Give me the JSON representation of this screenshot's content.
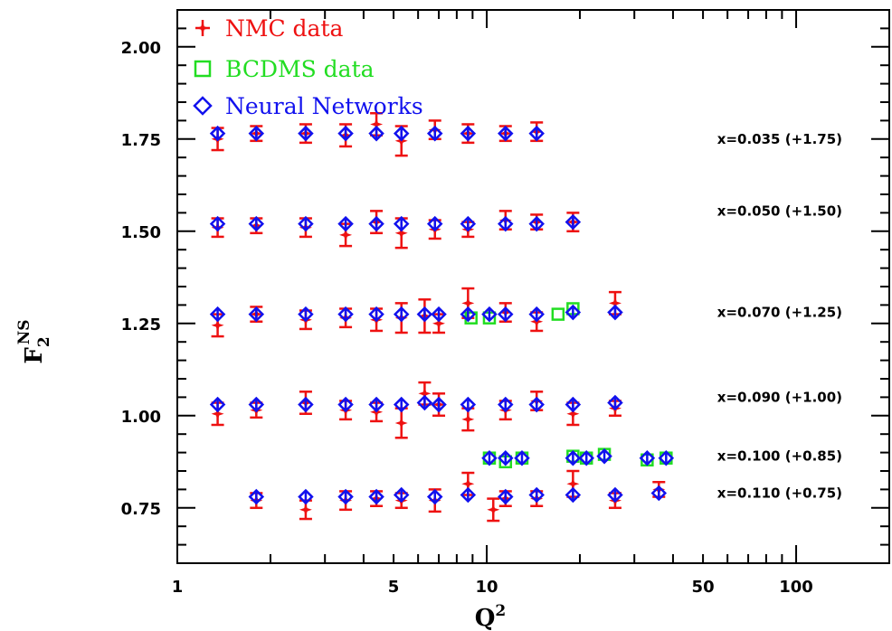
{
  "chart_data": {
    "type": "scatter",
    "x_axis": {
      "label": "Q",
      "label_sup": "2",
      "scale": "log",
      "range": [
        1,
        200
      ],
      "tick_values": [
        1,
        5,
        10,
        50,
        100
      ],
      "tick_labels": [
        "1",
        "5",
        "10",
        "50",
        "100"
      ]
    },
    "y_axis": {
      "label": "F",
      "label_sup": "NS",
      "label_sub": "2",
      "range": [
        0.6,
        2.1
      ],
      "tick_values": [
        0.75,
        1.0,
        1.25,
        1.5,
        1.75,
        2.0
      ],
      "tick_labels": [
        "0.75",
        "1.00",
        "1.25",
        "1.50",
        "1.75",
        "2.00"
      ]
    },
    "legend": {
      "placement": "top-left",
      "entries": [
        {
          "label": "NMC data",
          "color": "#ee1111",
          "marker": "star"
        },
        {
          "label": "BCDMS data",
          "color": "#22dd22",
          "marker": "square"
        },
        {
          "label": "Neural Networks",
          "color": "#1111ee",
          "marker": "diamond"
        }
      ]
    },
    "annotations": [
      {
        "text": "x=0.035 (+1.75)",
        "y": 1.75
      },
      {
        "text": "x=0.050 (+1.50)",
        "y": 1.555
      },
      {
        "text": "x=0.070 (+1.25)",
        "y": 1.28
      },
      {
        "text": "x=0.090 (+1.00)",
        "y": 1.05
      },
      {
        "text": "x=0.100 (+0.85)",
        "y": 0.89
      },
      {
        "text": "x=0.110 (+0.75)",
        "y": 0.79
      }
    ],
    "series": [
      {
        "name": "NMC data",
        "color": "#ee1111",
        "points": [
          [
            1.35,
            1.75,
            0.03
          ],
          [
            1.8,
            1.765,
            0.02
          ],
          [
            2.6,
            1.765,
            0.025
          ],
          [
            3.5,
            1.76,
            0.03
          ],
          [
            4.4,
            1.79,
            0.03
          ],
          [
            5.3,
            1.745,
            0.04
          ],
          [
            6.8,
            1.775,
            0.025
          ],
          [
            8.7,
            1.765,
            0.025
          ],
          [
            11.5,
            1.765,
            0.02
          ],
          [
            14.5,
            1.77,
            0.025
          ],
          [
            1.35,
            1.51,
            0.025
          ],
          [
            1.8,
            1.515,
            0.02
          ],
          [
            2.6,
            1.51,
            0.025
          ],
          [
            3.5,
            1.49,
            0.03
          ],
          [
            4.4,
            1.525,
            0.03
          ],
          [
            5.3,
            1.495,
            0.04
          ],
          [
            6.8,
            1.505,
            0.025
          ],
          [
            8.7,
            1.505,
            0.02
          ],
          [
            11.5,
            1.53,
            0.025
          ],
          [
            14.5,
            1.525,
            0.02
          ],
          [
            19.0,
            1.525,
            0.025
          ],
          [
            1.35,
            1.245,
            0.03
          ],
          [
            1.8,
            1.275,
            0.02
          ],
          [
            2.6,
            1.26,
            0.025
          ],
          [
            3.5,
            1.265,
            0.025
          ],
          [
            4.4,
            1.26,
            0.03
          ],
          [
            5.3,
            1.265,
            0.04
          ],
          [
            6.3,
            1.27,
            0.045
          ],
          [
            7.0,
            1.25,
            0.025
          ],
          [
            8.7,
            1.305,
            0.04
          ],
          [
            11.5,
            1.28,
            0.025
          ],
          [
            14.5,
            1.255,
            0.025
          ],
          [
            26.0,
            1.305,
            0.03
          ],
          [
            1.35,
            1.005,
            0.03
          ],
          [
            1.8,
            1.015,
            0.02
          ],
          [
            2.6,
            1.035,
            0.03
          ],
          [
            3.5,
            1.015,
            0.025
          ],
          [
            4.4,
            1.01,
            0.025
          ],
          [
            5.3,
            0.98,
            0.04
          ],
          [
            6.3,
            1.06,
            0.03
          ],
          [
            7.0,
            1.03,
            0.03
          ],
          [
            8.7,
            0.99,
            0.03
          ],
          [
            11.5,
            1.015,
            0.025
          ],
          [
            14.5,
            1.04,
            0.025
          ],
          [
            19.0,
            1.005,
            0.03
          ],
          [
            26.0,
            1.02,
            0.02
          ],
          [
            1.8,
            0.77,
            0.02
          ],
          [
            2.6,
            0.745,
            0.025
          ],
          [
            3.5,
            0.77,
            0.025
          ],
          [
            4.4,
            0.775,
            0.02
          ],
          [
            5.3,
            0.77,
            0.02
          ],
          [
            6.8,
            0.77,
            0.03
          ],
          [
            8.7,
            0.815,
            0.03
          ],
          [
            10.5,
            0.745,
            0.03
          ],
          [
            11.5,
            0.775,
            0.02
          ],
          [
            14.5,
            0.775,
            0.02
          ],
          [
            19.0,
            0.815,
            0.035
          ],
          [
            26.0,
            0.77,
            0.02
          ],
          [
            36.0,
            0.8,
            0.02
          ]
        ]
      },
      {
        "name": "BCDMS data",
        "color": "#22dd22",
        "points": [
          [
            8.9,
            1.265
          ],
          [
            10.2,
            1.265
          ],
          [
            17.0,
            1.275
          ],
          [
            19.0,
            1.29
          ],
          [
            10.2,
            0.885
          ],
          [
            11.5,
            0.875
          ],
          [
            13.0,
            0.885
          ],
          [
            19.0,
            0.89
          ],
          [
            21.0,
            0.885
          ],
          [
            24.0,
            0.895
          ],
          [
            33.0,
            0.88
          ],
          [
            38.0,
            0.885
          ]
        ]
      },
      {
        "name": "Neural Networks",
        "color": "#1111ee",
        "points": [
          [
            1.35,
            1.765
          ],
          [
            1.8,
            1.765
          ],
          [
            2.6,
            1.765
          ],
          [
            3.5,
            1.765
          ],
          [
            4.4,
            1.765
          ],
          [
            5.3,
            1.765
          ],
          [
            6.8,
            1.765
          ],
          [
            8.7,
            1.765
          ],
          [
            11.5,
            1.765
          ],
          [
            14.5,
            1.765
          ],
          [
            1.35,
            1.52
          ],
          [
            1.8,
            1.52
          ],
          [
            2.6,
            1.52
          ],
          [
            3.5,
            1.52
          ],
          [
            4.4,
            1.52
          ],
          [
            5.3,
            1.52
          ],
          [
            6.8,
            1.52
          ],
          [
            8.7,
            1.52
          ],
          [
            11.5,
            1.52
          ],
          [
            14.5,
            1.52
          ],
          [
            19.0,
            1.525
          ],
          [
            1.35,
            1.275
          ],
          [
            1.8,
            1.275
          ],
          [
            2.6,
            1.275
          ],
          [
            3.5,
            1.275
          ],
          [
            4.4,
            1.275
          ],
          [
            5.3,
            1.275
          ],
          [
            6.3,
            1.275
          ],
          [
            7.0,
            1.275
          ],
          [
            8.7,
            1.275
          ],
          [
            10.2,
            1.275
          ],
          [
            11.5,
            1.275
          ],
          [
            14.5,
            1.275
          ],
          [
            19.0,
            1.28
          ],
          [
            26.0,
            1.28
          ],
          [
            1.35,
            1.03
          ],
          [
            1.8,
            1.03
          ],
          [
            2.6,
            1.03
          ],
          [
            3.5,
            1.03
          ],
          [
            4.4,
            1.03
          ],
          [
            5.3,
            1.03
          ],
          [
            6.3,
            1.035
          ],
          [
            7.0,
            1.03
          ],
          [
            8.7,
            1.03
          ],
          [
            11.5,
            1.03
          ],
          [
            14.5,
            1.03
          ],
          [
            19.0,
            1.03
          ],
          [
            26.0,
            1.035
          ],
          [
            10.2,
            0.885
          ],
          [
            11.5,
            0.885
          ],
          [
            13.0,
            0.885
          ],
          [
            19.0,
            0.885
          ],
          [
            21.0,
            0.885
          ],
          [
            24.0,
            0.89
          ],
          [
            33.0,
            0.885
          ],
          [
            38.0,
            0.885
          ],
          [
            1.8,
            0.78
          ],
          [
            2.6,
            0.78
          ],
          [
            3.5,
            0.78
          ],
          [
            4.4,
            0.78
          ],
          [
            5.3,
            0.785
          ],
          [
            6.8,
            0.78
          ],
          [
            8.7,
            0.785
          ],
          [
            11.5,
            0.78
          ],
          [
            14.5,
            0.785
          ],
          [
            19.0,
            0.785
          ],
          [
            26.0,
            0.785
          ],
          [
            36.0,
            0.79
          ]
        ]
      }
    ]
  }
}
